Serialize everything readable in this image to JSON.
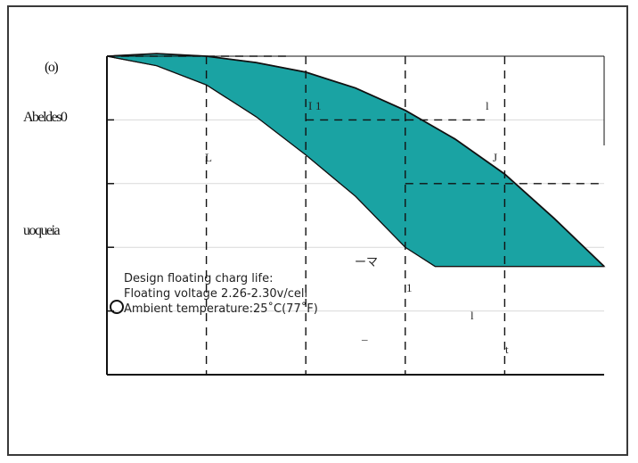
{
  "chart_data": {
    "type": "area",
    "title": "",
    "xlabel": "",
    "ylabel": "",
    "grid": true,
    "legend": "none",
    "band_color": "#1aa3a3",
    "dashed_color": "#111111",
    "faint_grid_color": "#d9d9d9",
    "x_ticks": [
      "",
      "",
      "",
      "",
      "",
      ""
    ],
    "y_ticks": [
      "",
      "",
      "",
      "",
      ""
    ],
    "x_range": [
      0,
      5
    ],
    "y_range": [
      0,
      5
    ],
    "upper_curve": [
      {
        "x": 0,
        "y": 5.0
      },
      {
        "x": 0.5,
        "y": 5.04
      },
      {
        "x": 1.0,
        "y": 5.0
      },
      {
        "x": 1.5,
        "y": 4.9
      },
      {
        "x": 2.0,
        "y": 4.75
      },
      {
        "x": 2.5,
        "y": 4.5
      },
      {
        "x": 3.0,
        "y": 4.15
      },
      {
        "x": 3.5,
        "y": 3.7
      },
      {
        "x": 4.0,
        "y": 3.15
      },
      {
        "x": 4.5,
        "y": 2.45
      },
      {
        "x": 5.0,
        "y": 1.7
      }
    ],
    "lower_curve": [
      {
        "x": 0,
        "y": 5.0
      },
      {
        "x": 0.5,
        "y": 4.85
      },
      {
        "x": 1.0,
        "y": 4.55
      },
      {
        "x": 1.5,
        "y": 4.05
      },
      {
        "x": 2.0,
        "y": 3.45
      },
      {
        "x": 2.5,
        "y": 2.8
      },
      {
        "x": 3.0,
        "y": 2.0
      },
      {
        "x": 3.3,
        "y": 1.7
      },
      {
        "x": 5.0,
        "y": 1.7
      }
    ],
    "dashed_verticals": [
      1,
      2,
      3,
      4
    ],
    "dashed_horizontals": [
      {
        "y": 5.0,
        "x_start": 0,
        "x_end": 1.8
      },
      {
        "y": 4.0,
        "x_start": 2.0,
        "x_end": 3.8
      },
      {
        "y": 3.0,
        "x_start": 3.0,
        "x_end": 5.0
      }
    ],
    "annotations": [
      "Design floating charg life:",
      "Floating voltage 2.26-2.30v/cell",
      "Ambient temperature:25˚C(77˚F)"
    ]
  },
  "ocr_labels": {
    "y_top": "(o)",
    "y_mid1": "Abeldes0",
    "y_mid2": "uoqueia"
  },
  "artifacts": [
    {
      "name": "glyph-a",
      "text": "I"
    },
    {
      "name": "glyph-b",
      "text": "1"
    },
    {
      "name": "glyph-c",
      "text": "l"
    },
    {
      "name": "glyph-d",
      "text": "J"
    },
    {
      "name": "glyph-e",
      "text": "L"
    },
    {
      "name": "glyph-f",
      "text": "1"
    },
    {
      "name": "glyph-g",
      "text": "l"
    },
    {
      "name": "glyph-h",
      "text": "t"
    },
    {
      "name": "glyph-i",
      "text": "ーマ"
    },
    {
      "name": "glyph-j",
      "text": "_"
    }
  ]
}
